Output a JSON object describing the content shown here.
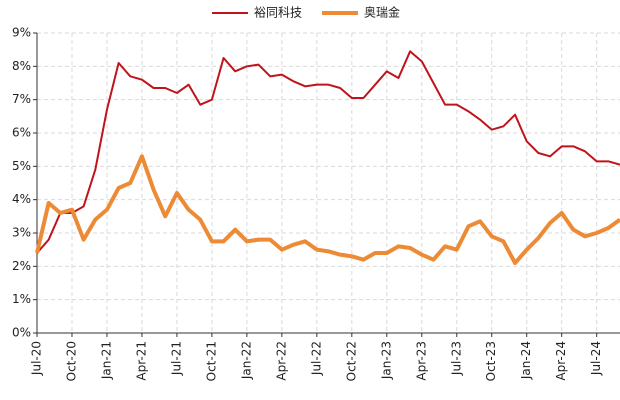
{
  "chart_data": {
    "type": "line",
    "categories": [
      "Jul-20",
      null,
      null,
      "Oct-20",
      null,
      null,
      "Jan-21",
      null,
      null,
      "Apr-21",
      null,
      null,
      "Jul-21",
      null,
      null,
      "Oct-21",
      null,
      null,
      "Jan-22",
      null,
      null,
      "Apr-22",
      null,
      null,
      "Jul-22",
      null,
      null,
      "Oct-22",
      null,
      null,
      "Jan-23",
      null,
      null,
      "Apr-23",
      null,
      null,
      "Jul-23",
      null,
      null,
      "Oct-23",
      null,
      null,
      "Jan-24",
      null,
      null,
      "Apr-24",
      null,
      null,
      "Jul-24",
      null,
      null
    ],
    "series": [
      {
        "name": "裕同科技",
        "color": "#c0141c",
        "width": 2,
        "values": [
          2.4,
          2.8,
          3.6,
          3.6,
          3.8,
          4.9,
          6.7,
          8.1,
          7.7,
          7.6,
          7.35,
          7.35,
          7.2,
          7.45,
          6.85,
          7.0,
          8.25,
          7.85,
          8.0,
          8.05,
          7.7,
          7.75,
          7.55,
          7.4,
          7.45,
          7.45,
          7.35,
          7.05,
          7.05,
          7.45,
          7.85,
          7.65,
          8.45,
          8.15,
          7.5,
          6.85,
          6.85,
          6.65,
          6.4,
          6.1,
          6.2,
          6.55,
          5.75,
          5.4,
          5.3,
          5.6,
          5.6,
          5.45,
          5.15,
          5.15,
          5.05
        ]
      },
      {
        "name": "奥瑞金",
        "color": "#ed8a35",
        "width": 4,
        "values": [
          2.4,
          3.9,
          3.6,
          3.7,
          2.8,
          3.4,
          3.7,
          4.35,
          4.5,
          5.3,
          4.3,
          3.5,
          4.2,
          3.7,
          3.4,
          2.75,
          2.75,
          3.1,
          2.75,
          2.8,
          2.8,
          2.5,
          2.65,
          2.75,
          2.5,
          2.45,
          2.35,
          2.3,
          2.2,
          2.4,
          2.4,
          2.6,
          2.55,
          2.35,
          2.2,
          2.6,
          2.5,
          3.2,
          3.35,
          2.9,
          2.75,
          2.1,
          2.5,
          2.85,
          3.3,
          3.6,
          3.1,
          2.9,
          3.0,
          3.15,
          3.4
        ]
      }
    ],
    "ylim": [
      0,
      9
    ],
    "yticks": [
      {
        "value": 0,
        "label": "0%"
      },
      {
        "value": 1,
        "label": "1%"
      },
      {
        "value": 2,
        "label": "2%"
      },
      {
        "value": 3,
        "label": "3%"
      },
      {
        "value": 4,
        "label": "4%"
      },
      {
        "value": 5,
        "label": "5%"
      },
      {
        "value": 6,
        "label": "6%"
      },
      {
        "value": 7,
        "label": "7%"
      },
      {
        "value": 8,
        "label": "8%"
      },
      {
        "value": 9,
        "label": "9%"
      }
    ],
    "grid": true,
    "legend": "top"
  }
}
